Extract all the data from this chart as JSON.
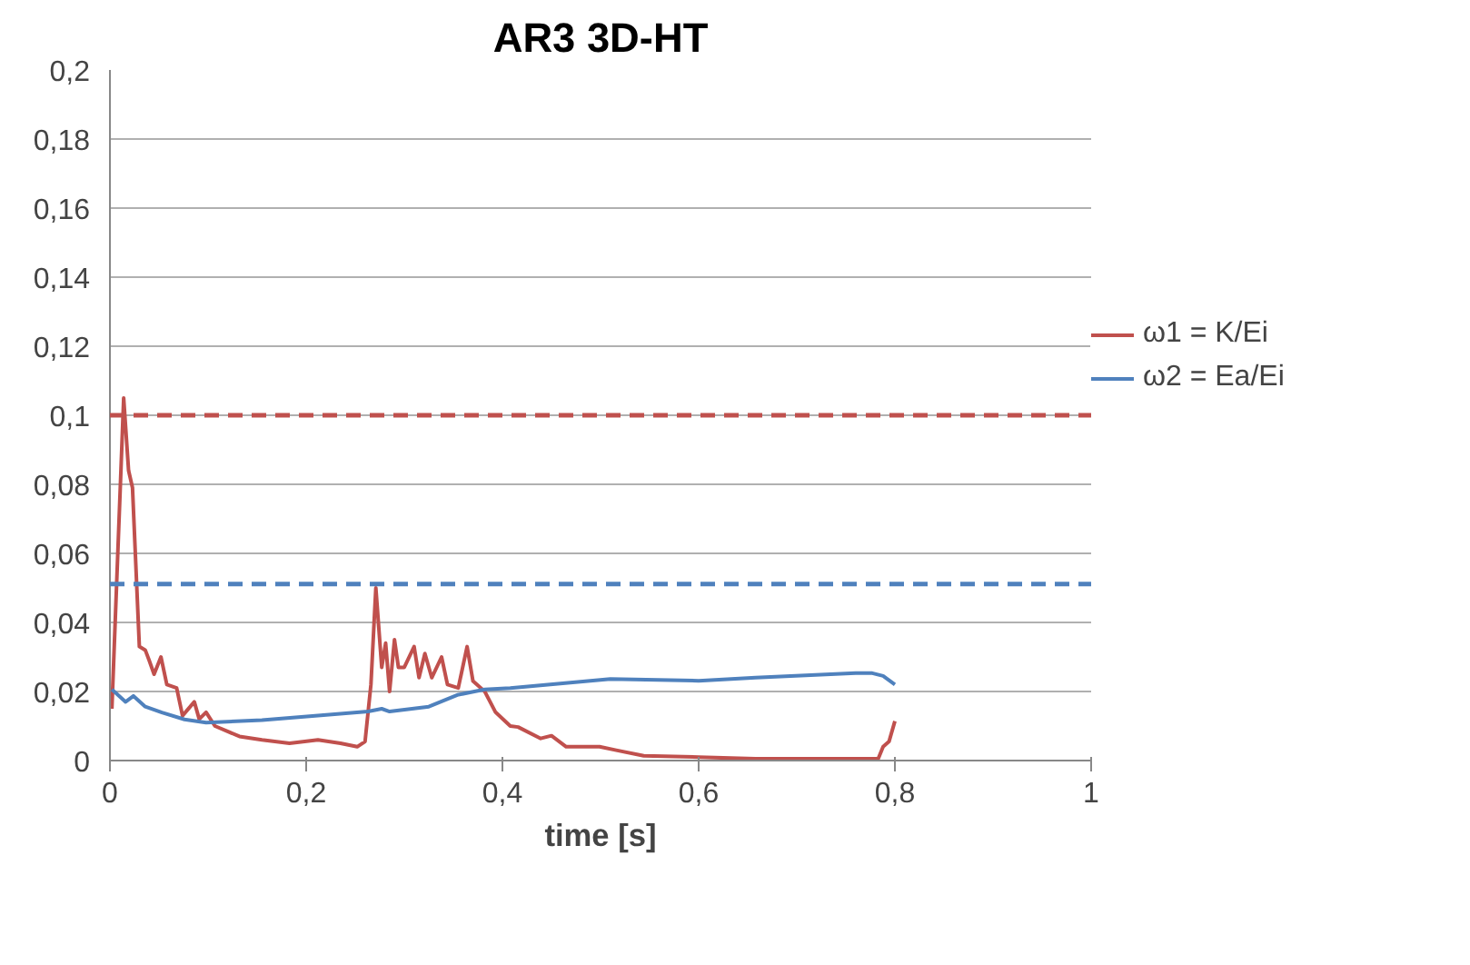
{
  "chart_data": {
    "type": "line",
    "title": "AR3 3D-HT",
    "xlabel": "time [s]",
    "xlim": [
      0,
      1
    ],
    "ylim": [
      0,
      0.2
    ],
    "xticks": [
      0,
      {
        "value": 0.2,
        "label": "0,2"
      },
      {
        "value": 0.4,
        "label": "0,4"
      },
      {
        "value": 0.6,
        "label": "0,6"
      },
      {
        "value": 0.8,
        "label": "0,8"
      },
      1
    ],
    "yticks": [
      0,
      {
        "value": 0.02,
        "label": "0,02"
      },
      {
        "value": 0.04,
        "label": "0,04"
      },
      {
        "value": 0.06,
        "label": "0,06"
      },
      {
        "value": 0.08,
        "label": "0,08"
      },
      {
        "value": 0.1,
        "label": "0,1"
      },
      {
        "value": 0.12,
        "label": "0,12"
      },
      {
        "value": 0.14,
        "label": "0,14"
      },
      {
        "value": 0.16,
        "label": "0,16"
      },
      {
        "value": 0.18,
        "label": "0,18"
      },
      {
        "value": 0.2,
        "label": "0,2"
      }
    ],
    "grid": "y",
    "legend": "right",
    "line_style": "solid",
    "marker": "none",
    "series": [
      {
        "name": "ω1 = K/Ei",
        "color": "#c0504d",
        "x": [
          0.002,
          0.014,
          0.019,
          0.023,
          0.03,
          0.036,
          0.04,
          0.045,
          0.052,
          0.058,
          0.068,
          0.074,
          0.086,
          0.091,
          0.098,
          0.107,
          0.132,
          0.155,
          0.183,
          0.212,
          0.235,
          0.252,
          0.26,
          0.266,
          0.271,
          0.277,
          0.281,
          0.285,
          0.29,
          0.294,
          0.3,
          0.31,
          0.315,
          0.321,
          0.328,
          0.338,
          0.344,
          0.355,
          0.364,
          0.37,
          0.382,
          0.393,
          0.408,
          0.416,
          0.439,
          0.45,
          0.465,
          0.499,
          0.516,
          0.544,
          0.6,
          0.658,
          0.714,
          0.783,
          0.788,
          0.794,
          0.8
        ],
        "values": [
          0.015,
          0.105,
          0.084,
          0.079,
          0.033,
          0.032,
          0.029,
          0.025,
          0.03,
          0.022,
          0.021,
          0.013,
          0.017,
          0.012,
          0.014,
          0.01,
          0.007,
          0.006,
          0.005,
          0.006,
          0.005,
          0.004,
          0.0055,
          0.022,
          0.05,
          0.027,
          0.034,
          0.02,
          0.035,
          0.027,
          0.027,
          0.033,
          0.024,
          0.031,
          0.024,
          0.03,
          0.022,
          0.021,
          0.033,
          0.023,
          0.02,
          0.014,
          0.01,
          0.0097,
          0.0064,
          0.0072,
          0.004,
          0.004,
          0.003,
          0.0014,
          0.001,
          0.0005,
          0.0005,
          0.0005,
          0.004,
          0.0055,
          0.0114
        ]
      },
      {
        "name": "ω2 = Ea/Ei",
        "color": "#4f81bd",
        "x": [
          0.002,
          0.016,
          0.024,
          0.036,
          0.053,
          0.076,
          0.098,
          0.155,
          0.212,
          0.263,
          0.277,
          0.285,
          0.325,
          0.354,
          0.382,
          0.408,
          0.51,
          0.6,
          0.658,
          0.76,
          0.777,
          0.788,
          0.8
        ],
        "values": [
          0.0206,
          0.017,
          0.0187,
          0.0156,
          0.0139,
          0.0119,
          0.011,
          0.0117,
          0.013,
          0.0142,
          0.015,
          0.0142,
          0.0156,
          0.019,
          0.0206,
          0.021,
          0.0236,
          0.0231,
          0.024,
          0.0253,
          0.0253,
          0.0245,
          0.022
        ]
      }
    ],
    "ref_lines": [
      {
        "axis": "y",
        "value": 0.1,
        "color": "#c0504d",
        "line_style": "dashed"
      },
      {
        "axis": "y",
        "value": 0.0511,
        "color": "#4f81bd",
        "line_style": "dashed"
      }
    ]
  }
}
